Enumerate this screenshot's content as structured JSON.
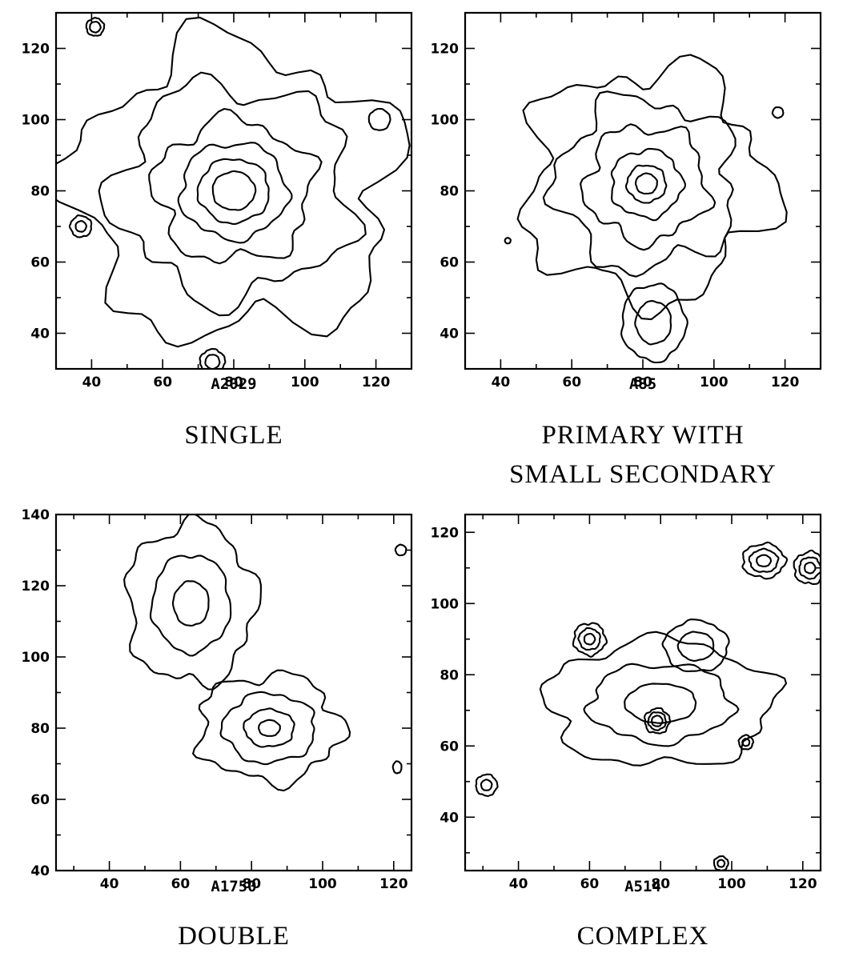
{
  "chart_data": [
    {
      "type": "contour",
      "cluster": "A2029",
      "category": [
        "SINGLE"
      ],
      "xlim": [
        30,
        130
      ],
      "ylim": [
        30,
        130
      ],
      "xticks": [
        40,
        60,
        80,
        100,
        120
      ],
      "yticks": [
        40,
        60,
        80,
        100,
        120
      ],
      "components": [
        {
          "cx": 80,
          "cy": 80,
          "radii": [
            6,
            10,
            15,
            22,
            33,
            45
          ],
          "aspect": 0.9
        },
        {
          "cx": 37,
          "cy": 70,
          "radii": [
            1.5,
            3
          ],
          "aspect": 1
        },
        {
          "cx": 41,
          "cy": 126,
          "radii": [
            1.5,
            2.5
          ],
          "aspect": 1
        },
        {
          "cx": 74,
          "cy": 32,
          "radii": [
            2,
            3.5
          ],
          "aspect": 1
        },
        {
          "cx": 121,
          "cy": 100,
          "radii": [
            3
          ],
          "aspect": 1
        }
      ]
    },
    {
      "type": "contour",
      "cluster": "A85",
      "category": [
        "PRIMARY WITH",
        "SMALL SECONDARY"
      ],
      "xlim": [
        30,
        130
      ],
      "ylim": [
        30,
        130
      ],
      "xticks": [
        40,
        60,
        80,
        100,
        120
      ],
      "yticks": [
        40,
        60,
        80,
        100,
        120
      ],
      "components": [
        {
          "cx": 81,
          "cy": 82,
          "radii": [
            3,
            5.5,
            10,
            17,
            25,
            34
          ],
          "aspect": 0.95
        },
        {
          "cx": 83,
          "cy": 43,
          "radii": [
            5,
            9
          ],
          "aspect": 1.2
        },
        {
          "cx": 118,
          "cy": 102,
          "radii": [
            1.5
          ],
          "aspect": 1
        },
        {
          "cx": 42,
          "cy": 66,
          "radii": [
            0.8
          ],
          "aspect": 1
        }
      ]
    },
    {
      "type": "contour",
      "cluster": "A1750",
      "category": [
        "DOUBLE"
      ],
      "xlim": [
        25,
        125
      ],
      "ylim": [
        40,
        140
      ],
      "xticks": [
        40,
        60,
        80,
        100,
        120
      ],
      "yticks": [
        40,
        60,
        80,
        100,
        120,
        140
      ],
      "components": [
        {
          "cx": 63,
          "cy": 115,
          "radii": [
            5,
            11,
            18
          ],
          "aspect": 1.25
        },
        {
          "cx": 85,
          "cy": 80,
          "radii": [
            3,
            7,
            13,
            20
          ],
          "aspect": 0.75
        },
        {
          "cx": 122,
          "cy": 130,
          "radii": [
            1.5
          ],
          "aspect": 1
        },
        {
          "cx": 121,
          "cy": 69,
          "radii": [
            1.2
          ],
          "aspect": 1.4
        }
      ]
    },
    {
      "type": "contour",
      "cluster": "A514",
      "category": [
        "COMPLEX"
      ],
      "xlim": [
        25,
        125
      ],
      "ylim": [
        25,
        125
      ],
      "xticks": [
        40,
        60,
        80,
        100,
        120
      ],
      "yticks": [
        40,
        60,
        80,
        100,
        120
      ],
      "components": [
        {
          "cx": 80,
          "cy": 72,
          "radii": [
            10,
            20,
            32
          ],
          "aspect": 0.55
        },
        {
          "cx": 90,
          "cy": 88,
          "radii": [
            5,
            9
          ],
          "aspect": 0.8
        },
        {
          "cx": 60,
          "cy": 90,
          "radii": [
            1.5,
            3,
            4.5
          ],
          "aspect": 1
        },
        {
          "cx": 79,
          "cy": 67,
          "radii": [
            1.5,
            2.5,
            3.5
          ],
          "aspect": 1
        },
        {
          "cx": 109,
          "cy": 112,
          "radii": [
            2,
            4,
            6
          ],
          "aspect": 0.8
        },
        {
          "cx": 122,
          "cy": 110,
          "radii": [
            1.5,
            3,
            4.5
          ],
          "aspect": 1
        },
        {
          "cx": 104,
          "cy": 61,
          "radii": [
            1,
            2
          ],
          "aspect": 1
        },
        {
          "cx": 31,
          "cy": 49,
          "radii": [
            1.5,
            3
          ],
          "aspect": 1
        },
        {
          "cx": 97,
          "cy": 27,
          "radii": [
            1,
            2
          ],
          "aspect": 1
        }
      ]
    }
  ]
}
